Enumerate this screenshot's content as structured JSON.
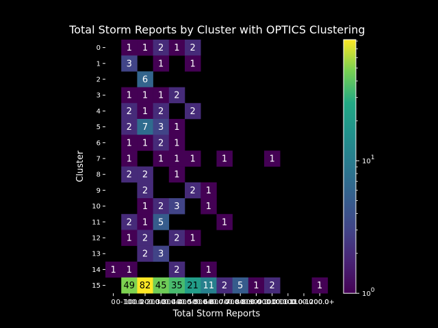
{
  "chart_data": {
    "type": "heatmap",
    "title": "Total Storm Reports by Cluster with OPTICS Clustering",
    "xlabel": "Total Storm Reports",
    "ylabel": "Cluster",
    "x_categories": [
      "0",
      "0-100",
      "100-200",
      "200-300",
      "300-400",
      "400-500",
      "500-600",
      "600-700",
      "700-800",
      "800-900",
      "900-1000",
      "1000-1100",
      "1100-1200",
      "1200+"
    ],
    "x_tick_labels": [
      "0",
      "0-100.0",
      "100.0-200.0",
      "200.0-300.0",
      "300.0-400.0",
      "400.0-500.0",
      "500.0-600.0",
      "600.0-700.0",
      "700.0-800.0",
      "800.0-900.0",
      "900.0-1000.0",
      "1000.0-1100.0",
      "1100.0-1200.0",
      "1200.0+"
    ],
    "y_categories": [
      "0",
      "1",
      "2",
      "3",
      "4",
      "5",
      "6",
      "7",
      "8",
      "9",
      "10",
      "11",
      "12",
      "13",
      "14",
      "15"
    ],
    "values": [
      [
        null,
        1,
        1,
        2,
        1,
        2,
        null,
        null,
        null,
        null,
        null,
        null,
        null,
        null
      ],
      [
        null,
        3,
        null,
        1,
        null,
        1,
        null,
        null,
        null,
        null,
        null,
        null,
        null,
        null
      ],
      [
        null,
        null,
        6,
        null,
        null,
        null,
        null,
        null,
        null,
        null,
        null,
        null,
        null,
        null
      ],
      [
        null,
        1,
        1,
        1,
        2,
        null,
        null,
        null,
        null,
        null,
        null,
        null,
        null,
        null
      ],
      [
        null,
        2,
        1,
        2,
        null,
        2,
        null,
        null,
        null,
        null,
        null,
        null,
        null,
        null
      ],
      [
        null,
        2,
        7,
        3,
        1,
        null,
        null,
        null,
        null,
        null,
        null,
        null,
        null,
        null
      ],
      [
        null,
        1,
        1,
        2,
        1,
        null,
        null,
        null,
        null,
        null,
        null,
        null,
        null,
        null
      ],
      [
        null,
        1,
        null,
        1,
        1,
        1,
        null,
        1,
        null,
        null,
        1,
        null,
        null,
        null
      ],
      [
        null,
        2,
        2,
        null,
        1,
        null,
        null,
        null,
        null,
        null,
        null,
        null,
        null,
        null
      ],
      [
        null,
        null,
        2,
        null,
        null,
        2,
        1,
        null,
        null,
        null,
        null,
        null,
        null,
        null
      ],
      [
        null,
        null,
        1,
        2,
        3,
        null,
        1,
        null,
        null,
        null,
        null,
        null,
        null,
        null
      ],
      [
        null,
        2,
        1,
        5,
        null,
        null,
        null,
        1,
        null,
        null,
        null,
        null,
        null,
        null
      ],
      [
        null,
        1,
        2,
        null,
        2,
        1,
        null,
        null,
        null,
        null,
        null,
        null,
        null,
        null
      ],
      [
        null,
        null,
        2,
        3,
        null,
        null,
        null,
        null,
        null,
        null,
        null,
        null,
        null,
        null
      ],
      [
        1,
        1,
        null,
        null,
        2,
        null,
        1,
        null,
        null,
        null,
        null,
        null,
        null,
        null
      ],
      [
        null,
        49,
        82,
        45,
        35,
        21,
        11,
        2,
        5,
        1,
        2,
        null,
        null,
        1
      ]
    ],
    "colorbar": {
      "scale": "log",
      "colormap": "viridis",
      "min": 1,
      "max": 82,
      "tick_labels": [
        "10^0",
        "10^1"
      ]
    },
    "background": "#000000"
  }
}
